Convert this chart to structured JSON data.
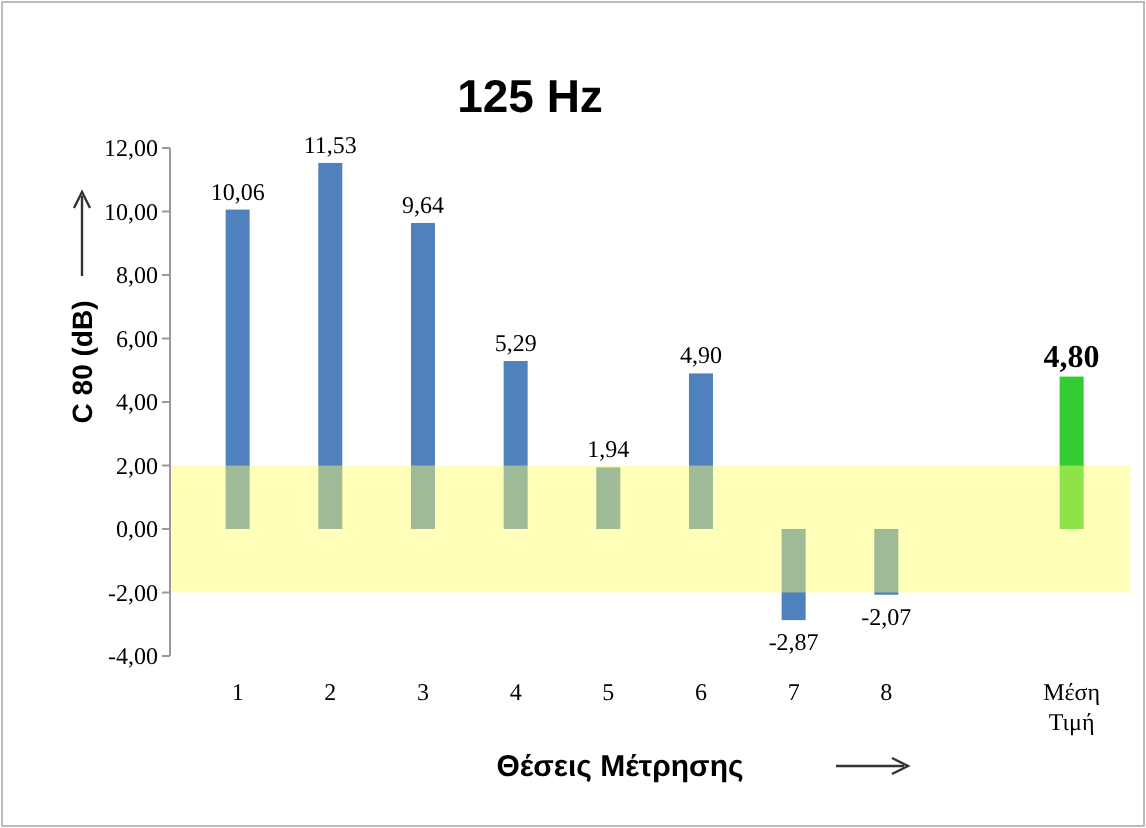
{
  "chart_data": {
    "type": "bar",
    "title": "125 Hz",
    "xlabel": "Θέσεις Μέτρησης",
    "ylabel": "C 80 (dB)",
    "categories": [
      "1",
      "2",
      "3",
      "4",
      "5",
      "6",
      "7",
      "8",
      null,
      "Μέση Τιμή"
    ],
    "values": [
      10.06,
      11.53,
      9.64,
      5.29,
      1.94,
      4.9,
      -2.87,
      -2.07,
      null,
      4.8
    ],
    "colors": [
      "#4f81bd",
      "#4f81bd",
      "#4f81bd",
      "#4f81bd",
      "#4f81bd",
      "#4f81bd",
      "#4f81bd",
      "#4f81bd",
      null,
      "#33cc33"
    ],
    "value_labels": [
      "10,06",
      "11,53",
      "9,64",
      "5,29",
      "1,94",
      "4,90",
      "-2,87",
      "-2,07",
      null,
      "4,80"
    ],
    "ylim": [
      -4,
      12
    ],
    "yticks": [
      {
        "value": -4,
        "label": "-4,00"
      },
      {
        "value": -2,
        "label": "-2,00"
      },
      {
        "value": 0,
        "label": "0,00"
      },
      {
        "value": 2,
        "label": "2,00"
      },
      {
        "value": 4,
        "label": "4,00"
      },
      {
        "value": 6,
        "label": "6,00"
      },
      {
        "value": 8,
        "label": "8,00"
      },
      {
        "value": 10,
        "label": "10,00"
      },
      {
        "value": 12,
        "label": "12,00"
      }
    ],
    "bands": [
      {
        "axis": "y",
        "from": -2,
        "to": 2,
        "color": "#ffff66"
      }
    ],
    "grid": false
  }
}
